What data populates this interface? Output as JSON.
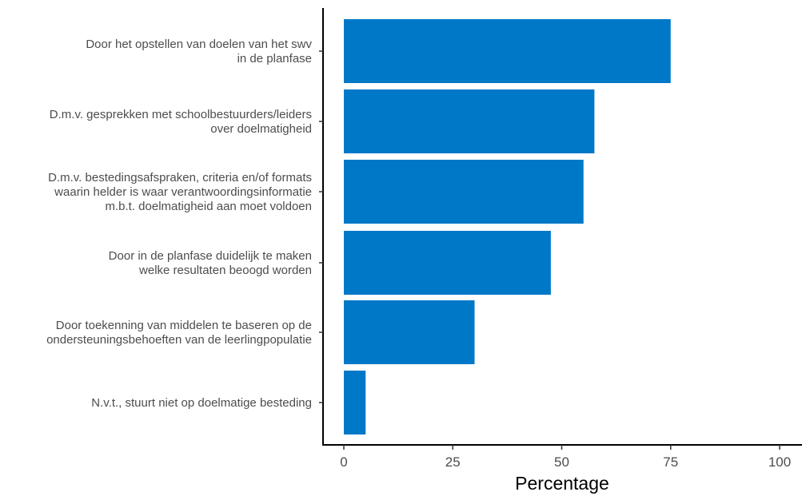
{
  "chart_data": {
    "type": "bar",
    "orientation": "horizontal",
    "categories": [
      [
        "Door het opstellen van doelen van het swv",
        "in de planfase"
      ],
      [
        "D.m.v. gesprekken met schoolbestuurders/leiders",
        "over doelmatigheid"
      ],
      [
        "D.m.v. bestedingsafspraken, criteria en/of formats",
        "waarin helder is waar verantwoordingsinformatie",
        "m.b.t. doelmatigheid aan moet voldoen"
      ],
      [
        "Door in de planfase duidelijk te maken",
        "welke resultaten beoogd worden"
      ],
      [
        "Door toekenning van middelen te baseren op de",
        "ondersteuningsbehoeften van de leerlingpopulatie"
      ],
      [
        "N.v.t., stuurt niet op doelmatige besteding"
      ]
    ],
    "values": [
      75,
      57.5,
      55,
      47.5,
      30,
      5
    ],
    "xlabel": "Percentage",
    "ylabel": "",
    "xlim": [
      0,
      100
    ],
    "xticks": [
      "0",
      "25",
      "50",
      "75",
      "100"
    ],
    "bar_color": "#0078c8",
    "grid": false
  }
}
